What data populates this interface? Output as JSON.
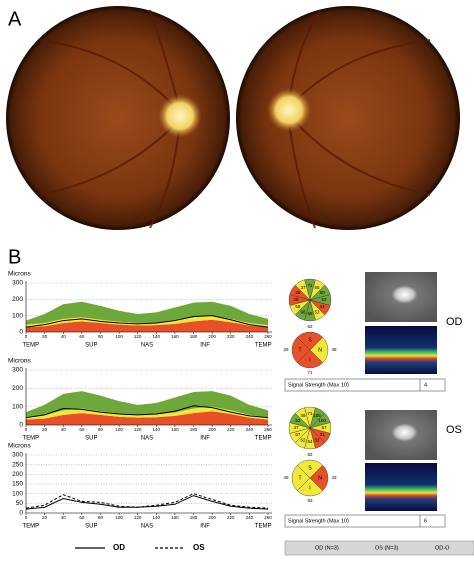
{
  "panels": {
    "A": {
      "label": "A"
    },
    "B": {
      "label": "B",
      "charts": [
        {
          "type": "area",
          "y_label": "Microns",
          "ylim": [
            0,
            300
          ],
          "yticks": [
            0,
            100,
            200,
            300
          ],
          "xlim": [
            0,
            260
          ],
          "xticks": [
            0,
            20,
            40,
            60,
            80,
            100,
            120,
            140,
            160,
            180,
            200,
            220,
            240,
            260
          ],
          "x": [
            0,
            20,
            40,
            60,
            80,
            100,
            120,
            140,
            160,
            180,
            200,
            220,
            240,
            260
          ],
          "x_regions": [
            "TEMP",
            "SUP",
            "NAS",
            "INF",
            "TEMP"
          ],
          "layers": [
            {
              "color": "#e8502a",
              "values": [
                30,
                35,
                55,
                65,
                55,
                45,
                40,
                42,
                50,
                65,
                75,
                60,
                40,
                30
              ]
            },
            {
              "color": "#f2e83a",
              "values": [
                15,
                20,
                25,
                25,
                20,
                18,
                15,
                15,
                18,
                25,
                25,
                20,
                15,
                12
              ]
            },
            {
              "color": "#6fa83a",
              "values": [
                25,
                55,
                90,
                95,
                85,
                67,
                55,
                63,
                82,
                90,
                85,
                80,
                55,
                38
              ]
            }
          ],
          "lines": [
            {
              "color": "#000000",
              "style": "solid",
              "values": [
                30,
                45,
                70,
                80,
                65,
                55,
                50,
                55,
                70,
                95,
                100,
                75,
                45,
                30
              ]
            }
          ]
        },
        {
          "type": "area",
          "y_label": "Microns",
          "ylim": [
            0,
            300
          ],
          "yticks": [
            0,
            100,
            200,
            300
          ],
          "xlim": [
            0,
            260
          ],
          "xticks": [
            0,
            20,
            40,
            60,
            80,
            100,
            120,
            140,
            160,
            180,
            200,
            220,
            240,
            260
          ],
          "x": [
            0,
            20,
            40,
            60,
            80,
            100,
            120,
            140,
            160,
            180,
            200,
            220,
            240,
            260
          ],
          "x_regions": [
            "TEMP",
            "SUP",
            "NAS",
            "INF",
            "TEMP"
          ],
          "layers": [
            {
              "color": "#e8502a",
              "values": [
                30,
                35,
                55,
                65,
                55,
                45,
                40,
                42,
                50,
                65,
                75,
                60,
                40,
                30
              ]
            },
            {
              "color": "#f2e83a",
              "values": [
                15,
                20,
                25,
                25,
                20,
                18,
                15,
                15,
                18,
                25,
                25,
                20,
                15,
                12
              ]
            },
            {
              "color": "#6fa83a",
              "values": [
                25,
                55,
                90,
                95,
                85,
                67,
                55,
                63,
                82,
                90,
                85,
                80,
                55,
                38
              ]
            }
          ],
          "lines": [
            {
              "color": "#000000",
              "style": "solid",
              "values": [
                40,
                55,
                90,
                85,
                70,
                60,
                55,
                60,
                75,
                105,
                95,
                70,
                50,
                40
              ]
            }
          ]
        },
        {
          "type": "line",
          "y_label": "Microns",
          "ylim": [
            0,
            300
          ],
          "yticks": [
            0,
            50,
            100,
            150,
            200,
            250,
            300
          ],
          "xlim": [
            0,
            260
          ],
          "xticks": [
            0,
            20,
            40,
            60,
            80,
            100,
            120,
            140,
            160,
            180,
            200,
            220,
            240,
            260
          ],
          "x": [
            0,
            20,
            40,
            60,
            80,
            100,
            120,
            140,
            160,
            180,
            200,
            220,
            240,
            260
          ],
          "x_regions": [
            "TEMP",
            "SUP",
            "NAS",
            "INF",
            "TEMP"
          ],
          "layers": [],
          "lines": [
            {
              "name": "OD",
              "color": "#000000",
              "style": "solid",
              "values": [
                20,
                30,
                75,
                55,
                45,
                30,
                30,
                35,
                45,
                90,
                60,
                35,
                25,
                20
              ]
            },
            {
              "name": "OS",
              "color": "#000000",
              "style": "dashed",
              "values": [
                25,
                40,
                95,
                60,
                55,
                35,
                30,
                40,
                55,
                100,
                70,
                40,
                30,
                25
              ]
            }
          ]
        }
      ],
      "eyes": [
        {
          "label": "OD",
          "clock": {
            "numbers": [
              "71",
              "55",
              "60",
              "53",
              "44",
              "52",
              "58",
              "96",
              "58",
              "28",
              "35",
              "37"
            ],
            "colors": [
              "#6fa83a",
              "#f2e83a",
              "#6fa83a",
              "#6fa83a",
              "#e8502a",
              "#f2e83a",
              "#6fa83a",
              "#6fa83a",
              "#f2e83a",
              "#e8502a",
              "#e8502a",
              "#f2e83a"
            ]
          },
          "quadrant": {
            "letters": [
              "S",
              "N",
              "I",
              "T"
            ],
            "numbers": [
              "62",
              "48",
              "71",
              "29"
            ],
            "colors": [
              "#e8502a",
              "#f2e83a",
              "#e8502a",
              "#e8502a"
            ]
          },
          "signal_label": "Signal Strength (Max 10)",
          "signal_value": "4"
        },
        {
          "label": "OS",
          "clock": {
            "numbers": [
              "71",
              "105",
              "100",
              "57",
              "31",
              "32",
              "54",
              "62",
              "67",
              "47",
              "52",
              "49"
            ],
            "colors": [
              "#f2e83a",
              "#6fa83a",
              "#6fa83a",
              "#f2e83a",
              "#e8502a",
              "#e8502a",
              "#f2e83a",
              "#f2e83a",
              "#f2e83a",
              "#f2e83a",
              "#6fa83a",
              "#f2e83a"
            ]
          },
          "quadrant": {
            "letters": [
              "S",
              "N",
              "I",
              "T"
            ],
            "numbers": [
              "82",
              "43",
              "83",
              "49"
            ],
            "colors": [
              "#f2e83a",
              "#e8502a",
              "#f2e83a",
              "#f2e83a"
            ]
          },
          "signal_label": "Signal Strength (Max 10)",
          "signal_value": "6"
        }
      ],
      "footer": [
        "OD (N=3)",
        "OS (N=3)",
        "OD-O"
      ]
    }
  }
}
